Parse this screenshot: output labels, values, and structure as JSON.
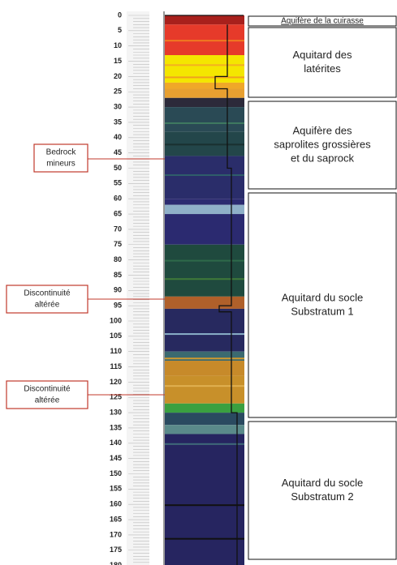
{
  "depth_ticks": [
    0,
    5,
    10,
    15,
    20,
    25,
    30,
    35,
    40,
    45,
    50,
    55,
    60,
    65,
    70,
    75,
    80,
    85,
    90,
    95,
    100,
    105,
    110,
    115,
    120,
    125,
    130,
    135,
    140,
    145,
    150,
    155,
    160,
    165,
    170,
    175,
    180
  ],
  "zones": [
    {
      "lines": [
        "Aquifère de la cuirasse"
      ]
    },
    {
      "lines": [
        "Aquitard des",
        "latérites"
      ]
    },
    {
      "lines": [
        "Aquifère des",
        "saprolites grossières",
        "et du saprock"
      ]
    },
    {
      "lines": [
        "Aquitard du socle",
        "Substratum 1"
      ]
    },
    {
      "lines": [
        "Aquitard du socle",
        "Substratum 2"
      ]
    }
  ],
  "annotations": [
    {
      "lines": [
        "Bedrock",
        "mineurs"
      ]
    },
    {
      "lines": [
        "Discontinuité",
        "altérée"
      ]
    },
    {
      "lines": [
        "Discontinuité",
        "altérée"
      ]
    }
  ]
}
